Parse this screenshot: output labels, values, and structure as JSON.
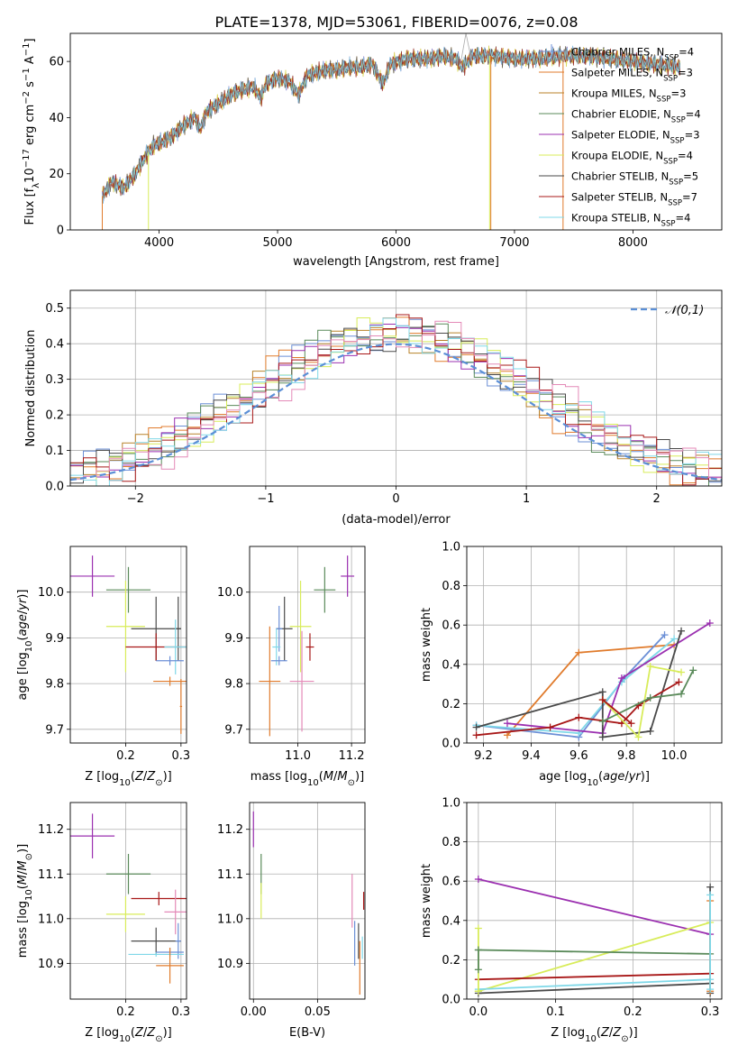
{
  "title": "PLATE=1378, MJD=53061, FIBERID=0076, z=0.08",
  "colors": {
    "Chabrier MILES": "#6b8fd6",
    "Salpeter MILES": "#e07b2c",
    "Kroupa MILES": "#b8822a",
    "Chabrier ELODIE": "#5a8a5a",
    "Salpeter ELODIE": "#9b30b0",
    "Kroupa ELODIE": "#d8ec5a",
    "Chabrier STELIB": "#4a4a4a",
    "Salpeter STELIB": "#a81818",
    "Kroupa STELIB": "#7fd8e8",
    "pink": "#e48ab8",
    "normal": "#5b8fd6"
  },
  "chart_data": [
    {
      "id": "spectrum",
      "type": "line",
      "xlabel": "wavelength [Angstrom, rest frame]",
      "ylabel": "Flux [f_λ10^-17 erg cm^-2 s^-1 A^-1]",
      "xlim": [
        3250,
        8750
      ],
      "ylim": [
        0,
        70
      ],
      "xticks": [
        4000,
        5000,
        6000,
        7000,
        8000
      ],
      "yticks": [
        0,
        20,
        40,
        60
      ],
      "legend_position": "right",
      "series_base": [
        [
          3520,
          12
        ],
        [
          3600,
          17
        ],
        [
          3700,
          15
        ],
        [
          3800,
          20
        ],
        [
          3880,
          26
        ],
        [
          3950,
          30
        ],
        [
          4000,
          31
        ],
        [
          4100,
          33
        ],
        [
          4200,
          37
        ],
        [
          4300,
          40
        ],
        [
          4350,
          36
        ],
        [
          4400,
          42
        ],
        [
          4500,
          45
        ],
        [
          4600,
          48
        ],
        [
          4700,
          50
        ],
        [
          4800,
          51
        ],
        [
          4860,
          47
        ],
        [
          4900,
          52
        ],
        [
          5000,
          54
        ],
        [
          5100,
          53
        ],
        [
          5175,
          48
        ],
        [
          5250,
          55
        ],
        [
          5400,
          57
        ],
        [
          5500,
          57
        ],
        [
          5600,
          58
        ],
        [
          5700,
          58
        ],
        [
          5800,
          59
        ],
        [
          5890,
          52
        ],
        [
          5950,
          59
        ],
        [
          6100,
          61
        ],
        [
          6200,
          61
        ],
        [
          6300,
          61
        ],
        [
          6400,
          62
        ],
        [
          6500,
          61
        ],
        [
          6563,
          58
        ],
        [
          6650,
          62
        ],
        [
          6800,
          62
        ],
        [
          7000,
          61
        ],
        [
          7200,
          61
        ],
        [
          7400,
          62
        ],
        [
          7600,
          62
        ],
        [
          7800,
          61
        ],
        [
          8000,
          60
        ],
        [
          8200,
          59
        ],
        [
          8400,
          58
        ]
      ],
      "legend": [
        {
          "label": "Chabrier MILES, N",
          "sub": "SSP",
          "value": "=4"
        },
        {
          "label": "Salpeter MILES, N",
          "sub": "SSP",
          "value": "=3"
        },
        {
          "label": "Kroupa MILES, N",
          "sub": "SSP",
          "value": "=3"
        },
        {
          "label": "Chabrier ELODIE, N",
          "sub": "SSP",
          "value": "=4"
        },
        {
          "label": "Salpeter ELODIE, N",
          "sub": "SSP",
          "value": "=3"
        },
        {
          "label": "Kroupa ELODIE, N",
          "sub": "SSP",
          "value": "=4"
        },
        {
          "label": "Chabrier STELIB, N",
          "sub": "SSP",
          "value": "=5"
        },
        {
          "label": "Salpeter STELIB, N",
          "sub": "SSP",
          "value": "=7"
        },
        {
          "label": "Kroupa STELIB, N",
          "sub": "SSP",
          "value": "=4"
        }
      ]
    },
    {
      "id": "residual-hist",
      "type": "histogram",
      "xlabel": "(data-model)/error",
      "ylabel": "Normed distribution",
      "xlim": [
        -2.5,
        2.5
      ],
      "ylim": [
        0,
        0.55
      ],
      "xticks": [
        -2,
        -1,
        0,
        1,
        2
      ],
      "yticks": [
        0.0,
        0.1,
        0.2,
        0.3,
        0.4,
        0.5
      ],
      "legend": "𝒩(0,1)",
      "legend_position": "top-right",
      "bin_width": 0.1
    },
    {
      "id": "age-vs-Z",
      "type": "scatter",
      "xlabel": "Z [log10(Z/Z⊙)]",
      "ylabel": "age [log10(age/yr)]",
      "xlim": [
        0.1,
        0.31
      ],
      "ylim": [
        9.67,
        10.1
      ],
      "xticks": [
        0.2,
        0.3
      ],
      "xticklabels": [
        "0.2",
        "0.3"
      ],
      "yticks": [
        9.7,
        9.8,
        9.9,
        10.0
      ],
      "points": [
        {
          "x": 0.14,
          "xe": 0.04,
          "y": 10.035,
          "ye": 0.045,
          "c": "Salpeter ELODIE"
        },
        {
          "x": 0.205,
          "xe": 0.04,
          "y": 10.005,
          "ye": 0.05,
          "c": "Chabrier ELODIE"
        },
        {
          "x": 0.2,
          "xe": 0.035,
          "y": 9.925,
          "ye": 0.1,
          "c": "Kroupa ELODIE"
        },
        {
          "x": 0.255,
          "xe": 0.045,
          "y": 9.92,
          "ye": 0.07,
          "c": "Chabrier STELIB"
        },
        {
          "x": 0.255,
          "xe": 0.055,
          "y": 9.88,
          "ye": 0.03,
          "c": "Salpeter STELIB"
        },
        {
          "x": 0.295,
          "xe": 0.005,
          "y": 9.92,
          "ye": 0.07,
          "c": "Chabrier STELIB"
        },
        {
          "x": 0.29,
          "xe": 0.02,
          "y": 9.88,
          "ye": 0.06,
          "c": "Kroupa STELIB"
        },
        {
          "x": 0.28,
          "xe": 0.025,
          "y": 9.85,
          "ye": 0.01,
          "c": "Chabrier MILES"
        },
        {
          "x": 0.28,
          "xe": 0.03,
          "y": 9.805,
          "ye": 0.01,
          "c": "Salpeter MILES"
        },
        {
          "x": 0.3,
          "xe": 0.002,
          "y": 9.75,
          "ye": 0.06,
          "c": "Salpeter MILES"
        }
      ]
    },
    {
      "id": "age-vs-mass",
      "type": "scatter",
      "xlabel": "mass [log10(M/M⊙)]",
      "ylabel": "",
      "xlim": [
        10.82,
        11.25
      ],
      "ylim": [
        9.67,
        10.1
      ],
      "xticks": [
        11.0,
        11.2
      ],
      "xticklabels": [
        "11.0",
        "11.2"
      ],
      "yticks": [
        9.7,
        9.8,
        9.9,
        10.0
      ],
      "points": [
        {
          "x": 11.185,
          "xe": 0.025,
          "y": 10.035,
          "ye": 0.045,
          "c": "Salpeter ELODIE"
        },
        {
          "x": 11.1,
          "xe": 0.04,
          "y": 10.005,
          "ye": 0.05,
          "c": "Chabrier ELODIE"
        },
        {
          "x": 11.01,
          "xe": 0.04,
          "y": 9.925,
          "ye": 0.1,
          "c": "Kroupa ELODIE"
        },
        {
          "x": 10.95,
          "xe": 0.03,
          "y": 9.92,
          "ye": 0.07,
          "c": "Chabrier STELIB"
        },
        {
          "x": 10.93,
          "xe": 0.012,
          "y": 9.92,
          "ye": 0.05,
          "c": "Chabrier MILES"
        },
        {
          "x": 10.92,
          "xe": 0.015,
          "y": 9.88,
          "ye": 0.04,
          "c": "Kroupa STELIB"
        },
        {
          "x": 11.045,
          "xe": 0.015,
          "y": 9.88,
          "ye": 0.03,
          "c": "Salpeter STELIB"
        },
        {
          "x": 10.93,
          "xe": 0.03,
          "y": 9.85,
          "ye": 0.01,
          "c": "Chabrier MILES"
        },
        {
          "x": 11.015,
          "xe": 0.045,
          "y": 9.805,
          "ye": 0.11,
          "c": "pink"
        },
        {
          "x": 10.895,
          "xe": 0.04,
          "y": 9.805,
          "ye": 0.12,
          "c": "Salpeter MILES"
        }
      ]
    },
    {
      "id": "mass-weight-vs-age",
      "type": "line",
      "xlabel": "age [log10(age/yr)]",
      "ylabel": "mass weight",
      "xlim": [
        9.13,
        10.2
      ],
      "ylim": [
        0.0,
        1.0
      ],
      "xticks": [
        9.2,
        9.4,
        9.6,
        9.8,
        10.0
      ],
      "xticklabels": [
        "9.2",
        "9.4",
        "9.6",
        "9.8",
        "10.0"
      ],
      "yticks": [
        0.0,
        0.2,
        0.4,
        0.6,
        0.8,
        1.0
      ],
      "series": [
        {
          "c": "Salpeter MILES",
          "x": [
            9.3,
            9.6,
            10.0
          ],
          "y": [
            0.04,
            0.46,
            0.5
          ]
        },
        {
          "c": "Chabrier MILES",
          "x": [
            9.17,
            9.6,
            9.79,
            9.96
          ],
          "y": [
            0.09,
            0.03,
            0.33,
            0.55
          ]
        },
        {
          "c": "Kroupa STELIB",
          "x": [
            9.17,
            9.6,
            9.78,
            10.0
          ],
          "y": [
            0.09,
            0.05,
            0.31,
            0.53
          ]
        },
        {
          "c": "Salpeter ELODIE",
          "x": [
            9.3,
            9.7,
            9.78,
            10.15
          ],
          "y": [
            0.1,
            0.05,
            0.33,
            0.61
          ]
        },
        {
          "c": "Chabrier STELIB",
          "x": [
            9.17,
            9.7,
            9.7,
            9.9,
            10.03
          ],
          "y": [
            0.08,
            0.26,
            0.03,
            0.06,
            0.57
          ]
        },
        {
          "c": "Salpeter STELIB",
          "x": [
            9.17,
            9.48,
            9.6,
            9.78,
            9.85,
            10.02
          ],
          "y": [
            0.04,
            0.08,
            0.13,
            0.1,
            0.19,
            0.31
          ]
        },
        {
          "c": "Kroupa ELODIE",
          "x": [
            9.7,
            9.85,
            9.9,
            10.03
          ],
          "y": [
            0.22,
            0.03,
            0.39,
            0.36
          ]
        },
        {
          "c": "Chabrier ELODIE",
          "x": [
            9.7,
            9.9,
            10.03,
            10.08
          ],
          "y": [
            0.11,
            0.23,
            0.25,
            0.37
          ]
        },
        {
          "c": "Salpeter STELIB",
          "x": [
            9.7,
            9.82
          ],
          "y": [
            0.22,
            0.1
          ]
        }
      ]
    },
    {
      "id": "mass-vs-Z",
      "type": "scatter",
      "xlabel": "Z [log10(Z/Z⊙)]",
      "ylabel": "mass [log10(M/M⊙)]",
      "xlim": [
        0.1,
        0.31
      ],
      "ylim": [
        10.82,
        11.26
      ],
      "xticks": [
        0.2,
        0.3
      ],
      "xticklabels": [
        "0.2",
        "0.3"
      ],
      "yticks": [
        10.9,
        11.0,
        11.1,
        11.2
      ],
      "points": [
        {
          "x": 0.14,
          "xe": 0.04,
          "y": 11.185,
          "ye": 0.05,
          "c": "Salpeter ELODIE"
        },
        {
          "x": 0.205,
          "xe": 0.04,
          "y": 11.1,
          "ye": 0.045,
          "c": "Chabrier ELODIE"
        },
        {
          "x": 0.2,
          "xe": 0.035,
          "y": 11.01,
          "ye": 0.04,
          "c": "Kroupa ELODIE"
        },
        {
          "x": 0.26,
          "xe": 0.05,
          "y": 11.045,
          "ye": 0.015,
          "c": "Salpeter STELIB"
        },
        {
          "x": 0.29,
          "xe": 0.02,
          "y": 11.015,
          "ye": 0.05,
          "c": "pink"
        },
        {
          "x": 0.255,
          "xe": 0.045,
          "y": 10.95,
          "ye": 0.03,
          "c": "Chabrier STELIB"
        },
        {
          "x": 0.295,
          "xe": 0.005,
          "y": 10.95,
          "ye": 0.04,
          "c": "Chabrier MILES"
        },
        {
          "x": 0.255,
          "xe": 0.05,
          "y": 10.92,
          "ye": 0.005,
          "c": "Kroupa STELIB"
        },
        {
          "x": 0.28,
          "xe": 0.025,
          "y": 10.925,
          "ye": 0.01,
          "c": "Chabrier MILES"
        },
        {
          "x": 0.28,
          "xe": 0.025,
          "y": 10.895,
          "ye": 0.04,
          "c": "Salpeter MILES"
        }
      ]
    },
    {
      "id": "mass-vs-ebv",
      "type": "scatter",
      "xlabel": "E(B-V)",
      "ylabel": "",
      "xlim": [
        -0.003,
        0.087
      ],
      "ylim": [
        10.82,
        11.26
      ],
      "xticks": [
        0.0,
        0.05
      ],
      "xticklabels": [
        "0.00",
        "0.05"
      ],
      "yticks": [
        10.9,
        11.0,
        11.1,
        11.2
      ],
      "points": [
        {
          "x": 0.0,
          "xe": 0.0,
          "y": 11.2,
          "ye": 0.04,
          "c": "Salpeter ELODIE"
        },
        {
          "x": 0.006,
          "xe": 0.0,
          "y": 11.1,
          "ye": 0.045,
          "c": "Chabrier ELODIE"
        },
        {
          "x": 0.006,
          "xe": 0.0,
          "y": 11.04,
          "ye": 0.04,
          "c": "Kroupa ELODIE"
        },
        {
          "x": 0.077,
          "xe": 0.0,
          "y": 11.04,
          "ye": 0.06,
          "c": "pink"
        },
        {
          "x": 0.086,
          "xe": 0.0,
          "y": 11.04,
          "ye": 0.02,
          "c": "Salpeter STELIB"
        },
        {
          "x": 0.079,
          "xe": 0.0,
          "y": 10.945,
          "ye": 0.05,
          "c": "Chabrier MILES"
        },
        {
          "x": 0.082,
          "xe": 0.0,
          "y": 10.95,
          "ye": 0.04,
          "c": "Chabrier STELIB"
        },
        {
          "x": 0.085,
          "xe": 0.0,
          "y": 10.935,
          "ye": 0.025,
          "c": "Kroupa STELIB"
        },
        {
          "x": 0.083,
          "xe": 0.0,
          "y": 10.89,
          "ye": 0.06,
          "c": "Salpeter MILES"
        }
      ]
    },
    {
      "id": "mass-weight-vs-Z",
      "type": "line",
      "xlabel": "Z [log10(Z/Z⊙)]",
      "ylabel": "mass weight",
      "xlim": [
        -0.015,
        0.315
      ],
      "ylim": [
        0.0,
        1.0
      ],
      "xticks": [
        0.0,
        0.1,
        0.2,
        0.3
      ],
      "xticklabels": [
        "0.0",
        "0.1",
        "0.2",
        "0.3"
      ],
      "yticks": [
        0.0,
        0.2,
        0.4,
        0.6,
        0.8,
        1.0
      ],
      "series": [
        {
          "c": "Salpeter ELODIE",
          "x": [
            0.0,
            0.3
          ],
          "y": [
            0.61,
            0.33
          ]
        },
        {
          "c": "Kroupa ELODIE",
          "x": [
            0.0,
            0.3
          ],
          "y": [
            0.04,
            0.39
          ]
        },
        {
          "c": "Chabrier ELODIE",
          "x": [
            0.0,
            0.3
          ],
          "y": [
            0.25,
            0.23
          ]
        },
        {
          "c": "Salpeter STELIB",
          "x": [
            0.0,
            0.3
          ],
          "y": [
            0.1,
            0.13
          ]
        },
        {
          "c": "Kroupa STELIB",
          "x": [
            0.0,
            0.3
          ],
          "y": [
            0.05,
            0.1
          ]
        },
        {
          "c": "Chabrier STELIB",
          "x": [
            0.0,
            0.3
          ],
          "y": [
            0.03,
            0.08
          ]
        },
        {
          "c": "Kroupa ELODIE",
          "x": [
            0.0,
            0.0
          ],
          "y": [
            0.04,
            0.36
          ]
        },
        {
          "c": "Chabrier ELODIE",
          "x": [
            0.0,
            0.0
          ],
          "y": [
            0.15,
            0.25
          ]
        },
        {
          "c": "Chabrier STELIB",
          "x": [
            0.3,
            0.3
          ],
          "y": [
            0.03,
            0.57
          ]
        },
        {
          "c": "Salpeter MILES",
          "x": [
            0.3,
            0.3
          ],
          "y": [
            0.04,
            0.5
          ]
        },
        {
          "c": "Kroupa STELIB",
          "x": [
            0.3,
            0.3
          ],
          "y": [
            0.05,
            0.53
          ]
        }
      ]
    }
  ]
}
